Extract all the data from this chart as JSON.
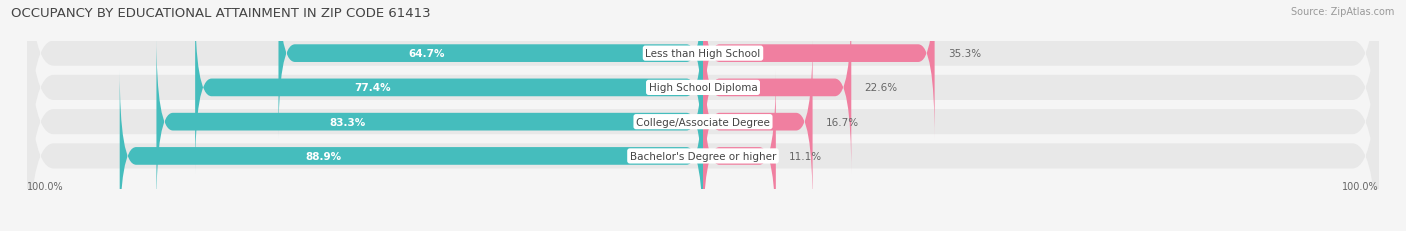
{
  "title": "OCCUPANCY BY EDUCATIONAL ATTAINMENT IN ZIP CODE 61413",
  "source": "Source: ZipAtlas.com",
  "categories": [
    "Less than High School",
    "High School Diploma",
    "College/Associate Degree",
    "Bachelor's Degree or higher"
  ],
  "owner_values": [
    64.7,
    77.4,
    83.3,
    88.9
  ],
  "renter_values": [
    35.3,
    22.6,
    16.7,
    11.1
  ],
  "owner_color": "#45BDBD",
  "renter_color": "#F07FA0",
  "background_color": "#f5f5f5",
  "row_bg_color": "#e8e8e8",
  "axis_label_left": "100.0%",
  "axis_label_right": "100.0%",
  "title_fontsize": 9.5,
  "source_fontsize": 7,
  "label_fontsize": 7.5,
  "category_fontsize": 7.5,
  "tick_fontsize": 7
}
